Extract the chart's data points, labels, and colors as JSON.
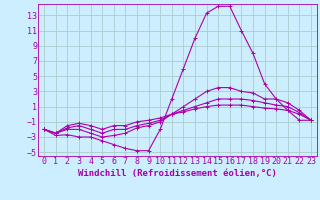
{
  "background_color": "#cceeff",
  "grid_color": "#aacccc",
  "line_color": "#aa00aa",
  "xlabel": "Windchill (Refroidissement éolien,°C)",
  "xlabel_fontsize": 6.5,
  "tick_fontsize": 6,
  "xlim": [
    -0.5,
    23.5
  ],
  "ylim": [
    -5.5,
    14.5
  ],
  "yticks": [
    -5,
    -3,
    -1,
    1,
    3,
    5,
    7,
    9,
    11,
    13
  ],
  "xticks": [
    0,
    1,
    2,
    3,
    4,
    5,
    6,
    7,
    8,
    9,
    10,
    11,
    12,
    13,
    14,
    15,
    16,
    17,
    18,
    19,
    20,
    21,
    22,
    23
  ],
  "lines": [
    {
      "x": [
        0,
        1,
        2,
        3,
        4,
        5,
        6,
        7,
        8,
        9,
        10,
        11,
        12,
        13,
        14,
        15,
        16,
        17,
        18,
        19,
        20,
        21,
        22,
        23
      ],
      "y": [
        -2.0,
        -2.8,
        -2.7,
        -3.0,
        -3.0,
        -3.5,
        -4.0,
        -4.5,
        -4.8,
        -4.8,
        -2.0,
        2.0,
        6.0,
        10.0,
        13.3,
        14.2,
        14.2,
        11.0,
        8.0,
        4.0,
        2.0,
        0.5,
        -0.8,
        -0.8
      ]
    },
    {
      "x": [
        0,
        1,
        2,
        3,
        4,
        5,
        6,
        7,
        8,
        9,
        10,
        11,
        12,
        13,
        14,
        15,
        16,
        17,
        18,
        19,
        20,
        21,
        22,
        23
      ],
      "y": [
        -2.0,
        -2.5,
        -2.0,
        -2.0,
        -2.5,
        -3.0,
        -2.8,
        -2.5,
        -1.8,
        -1.5,
        -1.0,
        0.0,
        1.0,
        2.0,
        3.0,
        3.5,
        3.5,
        3.0,
        2.8,
        2.0,
        2.0,
        1.5,
        0.5,
        -0.8
      ]
    },
    {
      "x": [
        0,
        1,
        2,
        3,
        4,
        5,
        6,
        7,
        8,
        9,
        10,
        11,
        12,
        13,
        14,
        15,
        16,
        17,
        18,
        19,
        20,
        21,
        22,
        23
      ],
      "y": [
        -2.0,
        -2.5,
        -1.8,
        -1.5,
        -2.0,
        -2.5,
        -2.0,
        -2.0,
        -1.5,
        -1.2,
        -0.8,
        0.0,
        0.5,
        1.0,
        1.5,
        2.0,
        2.0,
        2.0,
        1.8,
        1.5,
        1.2,
        1.0,
        0.2,
        -0.8
      ]
    },
    {
      "x": [
        0,
        1,
        2,
        3,
        4,
        5,
        6,
        7,
        8,
        9,
        10,
        11,
        12,
        13,
        14,
        15,
        16,
        17,
        18,
        19,
        20,
        21,
        22,
        23
      ],
      "y": [
        -2.0,
        -2.5,
        -1.5,
        -1.2,
        -1.5,
        -2.0,
        -1.5,
        -1.5,
        -1.0,
        -0.8,
        -0.5,
        0.0,
        0.3,
        0.7,
        1.0,
        1.2,
        1.2,
        1.2,
        1.0,
        0.8,
        0.7,
        0.5,
        0.0,
        -0.8
      ]
    }
  ]
}
